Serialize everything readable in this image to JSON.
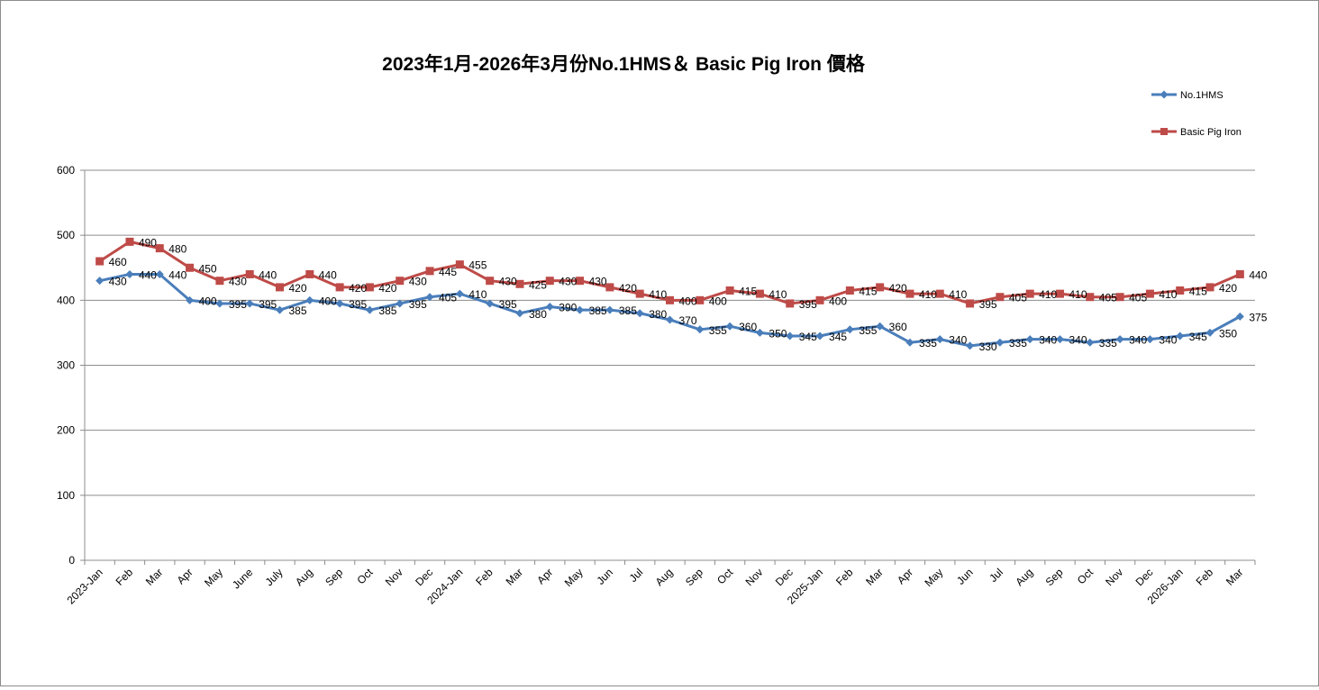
{
  "chart_data": {
    "type": "line",
    "title": "2023年1月-2026年3月份No.1HMS＆ Basic Pig Iron 價格",
    "xlabel": "",
    "ylabel": "",
    "ylim": [
      0,
      600
    ],
    "yticks": [
      "0",
      "100",
      "200",
      "300",
      "400",
      "500",
      "600"
    ],
    "grid": true,
    "legend_position": "top-right",
    "categories": [
      "2023-Jan",
      "Feb",
      "Mar",
      "Apr",
      "May",
      "June",
      "July",
      "Aug",
      "Sep",
      "Oct",
      "Nov",
      "Dec",
      "2024-Jan",
      "Feb",
      "Mar",
      "Apr",
      "May",
      "Jun",
      "Jul",
      "Aug",
      "Sep",
      "Oct",
      "Nov",
      "Dec",
      "2025-Jan",
      "Feb",
      "Mar",
      "Apr",
      "May",
      "Jun",
      "Jul",
      "Aug",
      "Sep",
      "Oct",
      "Nov",
      "Dec",
      "2026-Jan",
      "Feb",
      "Mar"
    ],
    "series": [
      {
        "name": "No.1HMS",
        "color": "#4a7ebb",
        "marker": "diamond",
        "values": [
          430,
          440,
          440,
          400,
          395,
          395,
          385,
          400,
          395,
          385,
          395,
          405,
          410,
          395,
          380,
          390,
          385,
          385,
          380,
          370,
          355,
          360,
          350,
          345,
          345,
          355,
          360,
          335,
          340,
          330,
          335,
          340,
          340,
          335,
          340,
          340,
          345,
          350,
          375
        ]
      },
      {
        "name": "Basic Pig Iron",
        "color": "#be4b48",
        "marker": "square",
        "values": [
          460,
          490,
          480,
          450,
          430,
          440,
          420,
          440,
          420,
          420,
          430,
          445,
          455,
          430,
          425,
          430,
          430,
          420,
          410,
          400,
          400,
          415,
          410,
          395,
          400,
          415,
          420,
          410,
          410,
          395,
          405,
          410,
          410,
          405,
          405,
          410,
          415,
          420,
          440
        ]
      }
    ]
  }
}
